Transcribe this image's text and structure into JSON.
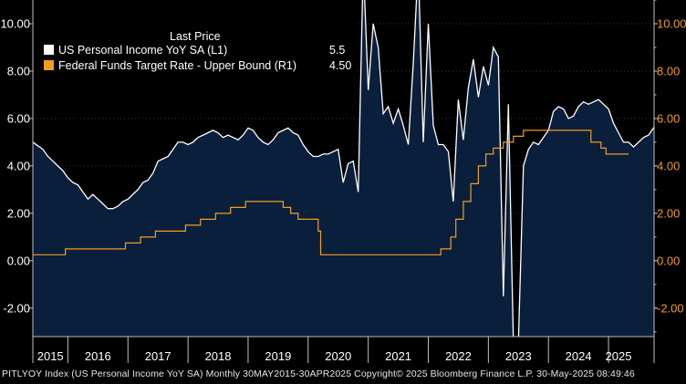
{
  "chart_data": {
    "type": "line",
    "legend": {
      "header": "Last Price",
      "placement": "top-left",
      "entries": [
        {
          "label": "US Personal Income YoY SA  (L1)",
          "value": "5.5",
          "color": "#ffffff"
        },
        {
          "label": "Federal Funds Target Rate - Upper Bound  (R1)",
          "value": "4.50",
          "color": "#f39c1e"
        }
      ]
    },
    "yaxis_left": {
      "min": -3.2,
      "max": 11.0,
      "ticks": [
        "10.00",
        "8.00",
        "6.00",
        "4.00",
        "2.00",
        "0.00",
        "-2.00"
      ],
      "tick_values": [
        10,
        8,
        6,
        4,
        2,
        0,
        -2
      ]
    },
    "yaxis_right": {
      "min": -3.2,
      "max": 11.0,
      "ticks": [
        "10.00",
        "8.00",
        "6.00",
        "4.00",
        "2.00",
        "0.00",
        "-2.00"
      ],
      "tick_values": [
        10,
        8,
        6,
        4,
        2,
        0,
        -2
      ]
    },
    "xaxis": {
      "start": 2015.4167,
      "end": 2025.3333,
      "labels": [
        "2015",
        "2016",
        "2017",
        "2018",
        "2019",
        "2020",
        "2021",
        "2022",
        "2023",
        "2024",
        "2025"
      ]
    },
    "grid": true,
    "series": [
      {
        "name": "US Personal Income YoY SA  (L1)",
        "axis": "left",
        "color": "#ffffff",
        "fill": "#0a1f3c",
        "x_start": 2015.4167,
        "x_step": 0.0833333,
        "values": [
          5.0,
          4.85,
          4.7,
          4.4,
          4.2,
          4.0,
          3.8,
          3.5,
          3.3,
          3.2,
          2.9,
          2.6,
          2.8,
          2.6,
          2.4,
          2.2,
          2.2,
          2.3,
          2.5,
          2.6,
          2.8,
          3.0,
          3.3,
          3.4,
          3.7,
          4.2,
          4.3,
          4.4,
          4.7,
          5.0,
          5.0,
          4.9,
          5.0,
          5.2,
          5.3,
          5.4,
          5.5,
          5.4,
          5.2,
          5.3,
          5.2,
          5.1,
          5.3,
          5.6,
          5.5,
          5.2,
          5.0,
          4.9,
          5.1,
          5.4,
          5.5,
          5.6,
          5.4,
          5.3,
          4.9,
          4.6,
          4.4,
          4.4,
          4.5,
          4.5,
          4.6,
          4.7,
          3.3,
          4.1,
          4.2,
          2.9,
          12.5,
          7.2,
          10.0,
          9.0,
          6.2,
          6.5,
          5.8,
          6.4,
          5.7,
          4.9,
          8.3,
          12.5,
          5.0,
          10.0,
          5.7,
          4.9,
          4.9,
          4.6,
          2.5,
          6.8,
          5.1,
          7.3,
          8.5,
          6.9,
          8.2,
          7.4,
          9.0,
          8.6,
          -1.5,
          6.6,
          -3.5,
          -3.4,
          4.0,
          4.7,
          5.0,
          4.9,
          5.2,
          5.5,
          6.3,
          6.5,
          6.4,
          6.0,
          6.1,
          6.5,
          6.7,
          6.6,
          6.7,
          6.8,
          6.6,
          6.4,
          5.8,
          5.4,
          5.0,
          5.0,
          4.8,
          5.0,
          5.2,
          5.3,
          5.6,
          6.0,
          5.9,
          6.0,
          5.8,
          5.6,
          5.5,
          5.4,
          5.4,
          5.3,
          5.0,
          4.9,
          5.3,
          5.1,
          5.2,
          5.2,
          4.4,
          4.8,
          4.9,
          4.7,
          5.5
        ]
      },
      {
        "name": "Federal Funds Target Rate - Upper Bound  (R1)",
        "axis": "right",
        "color": "#f39c1e",
        "step": true,
        "points": [
          [
            2015.4167,
            0.25
          ],
          [
            2015.9583,
            0.5
          ],
          [
            2016.9583,
            0.75
          ],
          [
            2017.2083,
            1.0
          ],
          [
            2017.4583,
            1.25
          ],
          [
            2017.9583,
            1.5
          ],
          [
            2018.2083,
            1.75
          ],
          [
            2018.4583,
            2.0
          ],
          [
            2018.7083,
            2.25
          ],
          [
            2018.9583,
            2.5
          ],
          [
            2019.5833,
            2.25
          ],
          [
            2019.7083,
            2.0
          ],
          [
            2019.8333,
            1.75
          ],
          [
            2020.1667,
            1.25
          ],
          [
            2020.2083,
            0.25
          ],
          [
            2022.2083,
            0.5
          ],
          [
            2022.375,
            1.0
          ],
          [
            2022.4583,
            1.75
          ],
          [
            2022.5833,
            2.5
          ],
          [
            2022.7083,
            3.25
          ],
          [
            2022.8333,
            4.0
          ],
          [
            2022.9583,
            4.5
          ],
          [
            2023.0833,
            4.75
          ],
          [
            2023.25,
            5.0
          ],
          [
            2023.4167,
            5.25
          ],
          [
            2023.5833,
            5.5
          ],
          [
            2024.7083,
            5.0
          ],
          [
            2024.875,
            4.75
          ],
          [
            2024.9583,
            4.5
          ],
          [
            2025.3333,
            4.5
          ]
        ]
      }
    ]
  },
  "footer": "PITLYOY Index (US Personal Income YoY SA)  Monthly 30MAY2015-30APR2025  Copyright© 2025 Bloomberg Finance L.P.  30-May-2025 08:49:46"
}
